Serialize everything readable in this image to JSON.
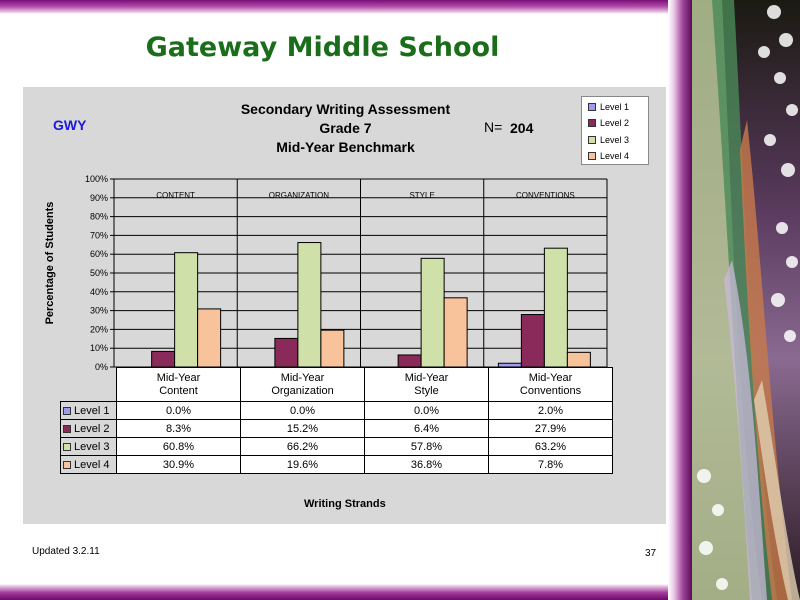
{
  "slide": {
    "title": "Gateway Middle School",
    "footer_updated": "Updated  3.2.11",
    "page_number": "37"
  },
  "chart_header": {
    "title_line1": "Secondary Writing Assessment",
    "title_line2": "Grade 7",
    "title_line3": "Mid-Year Benchmark",
    "school_code": "GWY",
    "n_label": "N=",
    "n_value": "204"
  },
  "colors": {
    "level_1": "#9b9bf0",
    "level_2": "#8a2a5a",
    "level_3": "#cfe0a8",
    "level_4": "#f8c29a",
    "title_green": "#1a6e1a",
    "frame_purple": "#8a1a86"
  },
  "chart_data": {
    "type": "bar",
    "title": "Secondary Writing Assessment Grade 7 Mid-Year Benchmark",
    "ylabel": "Percentage of Students",
    "xlabel": "Writing Strands",
    "ylim": [
      0,
      100
    ],
    "yticks": [
      "0%",
      "10%",
      "20%",
      "30%",
      "40%",
      "50%",
      "60%",
      "70%",
      "80%",
      "90%",
      "100%"
    ],
    "group_labels": [
      "CONTENT",
      "ORGANIZATION",
      "STYLE",
      "CONVENTIONS"
    ],
    "categories": [
      "Mid-Year Content",
      "Mid-Year Organization",
      "Mid-Year Style",
      "Mid-Year Conventions"
    ],
    "category_lines": [
      [
        "Mid-Year",
        "Content"
      ],
      [
        "Mid-Year",
        "Organization"
      ],
      [
        "Mid-Year",
        "Style"
      ],
      [
        "Mid-Year",
        "Conventions"
      ]
    ],
    "series": [
      {
        "name": "Level 1",
        "values": [
          0.0,
          0.0,
          0.0,
          2.0
        ],
        "labels": [
          "0.0%",
          "0.0%",
          "0.0%",
          "2.0%"
        ]
      },
      {
        "name": "Level 2",
        "values": [
          8.3,
          15.2,
          6.4,
          27.9
        ],
        "labels": [
          "8.3%",
          "15.2%",
          "6.4%",
          "27.9%"
        ]
      },
      {
        "name": "Level 3",
        "values": [
          60.8,
          66.2,
          57.8,
          63.2
        ],
        "labels": [
          "60.8%",
          "66.2%",
          "57.8%",
          "63.2%"
        ]
      },
      {
        "name": "Level 4",
        "values": [
          30.9,
          19.6,
          36.8,
          7.8
        ],
        "labels": [
          "30.9%",
          "19.6%",
          "36.8%",
          "7.8%"
        ]
      }
    ],
    "grid": true,
    "legend": "top-right"
  }
}
